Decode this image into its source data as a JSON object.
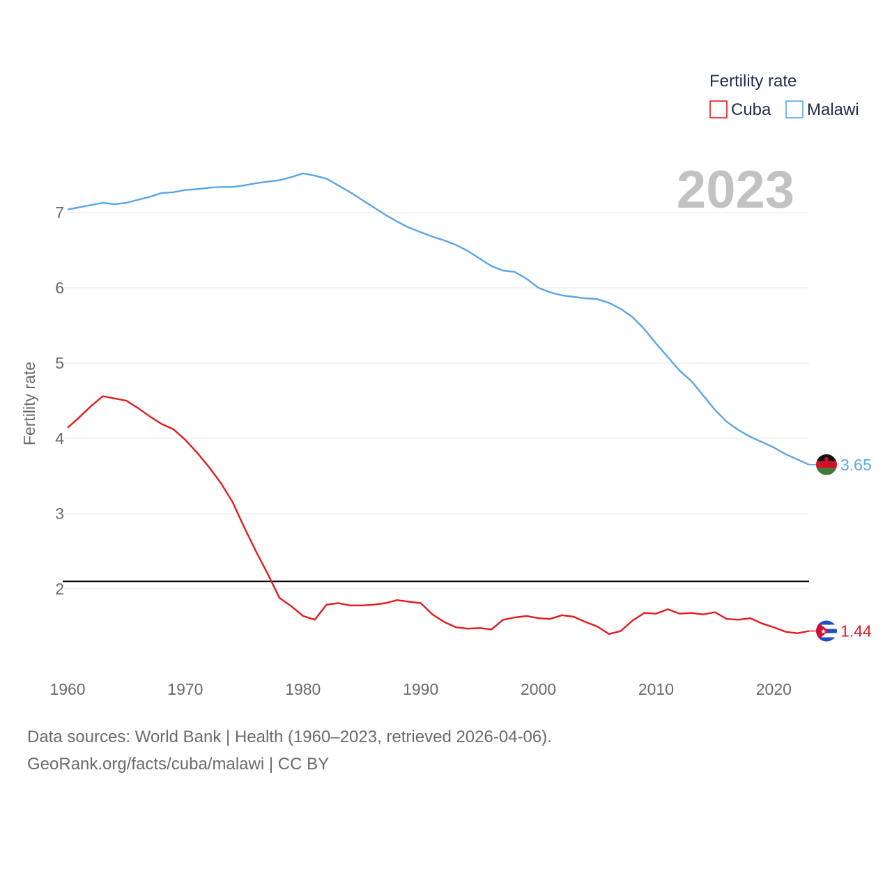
{
  "chart_data": {
    "type": "line",
    "title": "",
    "xlabel": "",
    "ylabel": "Fertility rate",
    "xlim": [
      1960,
      2023
    ],
    "ylim": [
      0.8,
      8.0
    ],
    "x_ticks": [
      1960,
      1970,
      1980,
      1990,
      2000,
      2010,
      2020
    ],
    "y_ticks": [
      2,
      3,
      4,
      5,
      6,
      7
    ],
    "year_label": "2023",
    "legend": {
      "title": "Fertility rate",
      "position": "top-right"
    },
    "reference_line": {
      "value": 2.1,
      "color": "#000000"
    },
    "years": [
      1960,
      1961,
      1962,
      1963,
      1964,
      1965,
      1966,
      1967,
      1968,
      1969,
      1970,
      1971,
      1972,
      1973,
      1974,
      1975,
      1976,
      1977,
      1978,
      1979,
      1980,
      1981,
      1982,
      1983,
      1984,
      1985,
      1986,
      1987,
      1988,
      1989,
      1990,
      1991,
      1992,
      1993,
      1994,
      1995,
      1996,
      1997,
      1998,
      1999,
      2000,
      2001,
      2002,
      2003,
      2004,
      2005,
      2006,
      2007,
      2008,
      2009,
      2010,
      2011,
      2012,
      2013,
      2014,
      2015,
      2016,
      2017,
      2018,
      2019,
      2020,
      2021,
      2022,
      2023
    ],
    "series": [
      {
        "name": "Cuba",
        "color": "#e31a1c",
        "end_label": "1.44",
        "values": [
          4.14,
          4.28,
          4.43,
          4.56,
          4.53,
          4.5,
          4.4,
          4.29,
          4.19,
          4.12,
          3.98,
          3.81,
          3.62,
          3.41,
          3.16,
          2.82,
          2.5,
          2.2,
          1.88,
          1.77,
          1.64,
          1.59,
          1.79,
          1.81,
          1.78,
          1.78,
          1.79,
          1.81,
          1.85,
          1.83,
          1.81,
          1.66,
          1.56,
          1.49,
          1.47,
          1.48,
          1.46,
          1.59,
          1.62,
          1.64,
          1.61,
          1.6,
          1.65,
          1.63,
          1.56,
          1.5,
          1.4,
          1.44,
          1.58,
          1.68,
          1.67,
          1.73,
          1.67,
          1.68,
          1.66,
          1.69,
          1.6,
          1.59,
          1.61,
          1.54,
          1.49,
          1.43,
          1.41,
          1.44
        ]
      },
      {
        "name": "Malawi",
        "color": "#5aa5e6",
        "end_label": "3.65",
        "values": [
          7.04,
          7.07,
          7.1,
          7.13,
          7.11,
          7.13,
          7.17,
          7.21,
          7.26,
          7.27,
          7.3,
          7.31,
          7.33,
          7.34,
          7.34,
          7.36,
          7.39,
          7.41,
          7.43,
          7.47,
          7.52,
          7.49,
          7.45,
          7.36,
          7.27,
          7.17,
          7.07,
          6.97,
          6.88,
          6.8,
          6.74,
          6.68,
          6.63,
          6.57,
          6.49,
          6.39,
          6.29,
          6.23,
          6.21,
          6.12,
          6.0,
          5.94,
          5.9,
          5.88,
          5.86,
          5.85,
          5.8,
          5.72,
          5.61,
          5.45,
          5.26,
          5.08,
          4.9,
          4.76,
          4.57,
          4.38,
          4.22,
          4.11,
          4.02,
          3.95,
          3.88,
          3.79,
          3.72,
          3.65
        ]
      }
    ]
  },
  "footer": {
    "line1": "Data sources: World Bank | Health (1960–2023, retrieved 2026-04-06).",
    "line2": "GeoRank.org/facts/cuba/malawi | CC BY"
  }
}
